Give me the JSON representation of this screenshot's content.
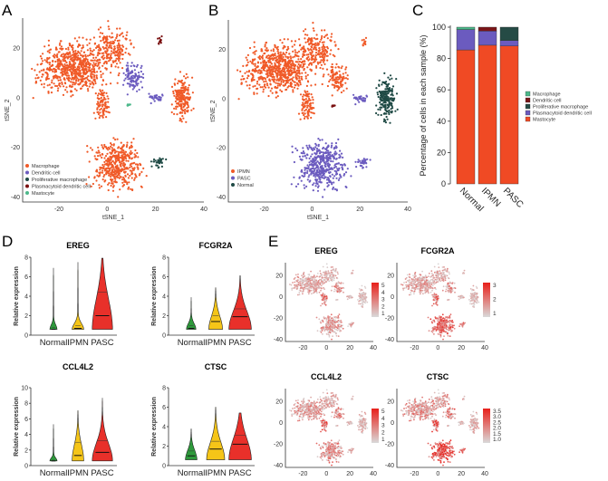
{
  "panel_labels": [
    "A",
    "B",
    "C",
    "D",
    "E"
  ],
  "chart_data": [
    {
      "panel": "A",
      "type": "scatter",
      "xlabel": "tSNE_1",
      "ylabel": "tSNE_2",
      "xticks": [
        -20,
        0,
        20,
        40
      ],
      "yticks": [
        20,
        0,
        -20,
        -40
      ],
      "xlim": [
        -35,
        40
      ],
      "ylim": [
        -42,
        32
      ],
      "legend": [
        {
          "label": "Macrophage",
          "color": "#f05a28"
        },
        {
          "label": "Dendritic cell",
          "color": "#6b5bbf"
        },
        {
          "label": "Proliferative macrophage",
          "color": "#1f4a45"
        },
        {
          "label": "Plasmacytoid dendritic cell",
          "color": "#7a1010"
        },
        {
          "label": "Mastocyte",
          "color": "#4cb88a"
        }
      ],
      "legend_position": "bottom-left"
    },
    {
      "panel": "B",
      "type": "scatter",
      "xlabel": "tSNE_1",
      "ylabel": "tSNE_2",
      "xticks": [
        -20,
        0,
        20,
        40
      ],
      "yticks": [
        20,
        0,
        -20,
        -40
      ],
      "xlim": [
        -35,
        40
      ],
      "ylim": [
        -42,
        32
      ],
      "legend": [
        {
          "label": "IPMN",
          "color": "#f05a28"
        },
        {
          "label": "PASC",
          "color": "#6b5bbf"
        },
        {
          "label": "Normal",
          "color": "#1f4a45"
        }
      ],
      "legend_position": "bottom-left"
    },
    {
      "panel": "C",
      "type": "bar",
      "stacked": true,
      "ylabel": "Percentage of cells in each sample (%)",
      "ylim": [
        0,
        100
      ],
      "yticks": [
        0,
        20,
        40,
        60,
        80,
        100
      ],
      "categories": [
        "Normal",
        "IPMN",
        "PASC"
      ],
      "legend_position": "right",
      "series": [
        {
          "name": "Mastocyte",
          "color": "#f04a24",
          "values": [
            85.5,
            88.5,
            88
          ]
        },
        {
          "name": "Plasmacytoid dendritic cell",
          "color": "#6b5bbf",
          "values": [
            13,
            9,
            3.5
          ]
        },
        {
          "name": "Proliferative macrophage",
          "color": "#254b45",
          "values": [
            0,
            0,
            8.5
          ]
        },
        {
          "name": "Dendritic cell",
          "color": "#7a1518",
          "values": [
            0,
            2.5,
            0
          ]
        },
        {
          "name": "Macrophage",
          "color": "#4cb88a",
          "values": [
            1.5,
            0,
            0
          ]
        }
      ],
      "legend_order": [
        "Macrophage",
        "Dendritic cell",
        "Proliferative macrophage",
        "Plasmacytoid dendritic cell",
        "Mastocyte"
      ]
    },
    {
      "panel": "D",
      "type": "violin",
      "ylabel": "Relative expression",
      "categories": [
        "Normal",
        "IPMN",
        "PASC"
      ],
      "colors": [
        "#2e9a3c",
        "#f5c518",
        "#e8302a"
      ],
      "genes": [
        {
          "title": "EREG",
          "ylim": [
            0,
            8
          ],
          "yticks": [
            0,
            2,
            4,
            6,
            8
          ],
          "median": [
            0.6,
            0.7,
            2.0
          ],
          "q3": [
            0.8,
            1.0,
            4.4
          ],
          "max": [
            6.9,
            7.5,
            7.9
          ],
          "body": [
            0.3,
            0.5,
            0.9
          ]
        },
        {
          "title": "FCGR2A",
          "ylim": [
            0,
            8
          ],
          "yticks": [
            0,
            2,
            4,
            6,
            8
          ],
          "median": [
            0.7,
            1.4,
            1.9
          ],
          "q3": [
            1.0,
            2.0,
            2.7
          ],
          "max": [
            3.9,
            4.9,
            6.1
          ],
          "body": [
            0.4,
            0.6,
            1.0
          ]
        },
        {
          "title": "CCL4L2",
          "ylim": [
            0,
            10
          ],
          "yticks": [
            0,
            2,
            4,
            6,
            8,
            10
          ],
          "median": [
            0.6,
            1.3,
            1.7
          ],
          "q3": [
            0.7,
            3.0,
            3.2
          ],
          "max": [
            5.3,
            7.1,
            8.7
          ],
          "body": [
            0.3,
            0.5,
            0.9
          ]
        },
        {
          "title": "CTSC",
          "ylim": [
            0,
            8
          ],
          "yticks": [
            0,
            2,
            4,
            6,
            8
          ],
          "median": [
            1.0,
            1.7,
            2.2
          ],
          "q3": [
            1.5,
            2.5,
            3.1
          ],
          "max": [
            3.8,
            6.0,
            5.4
          ],
          "body": [
            0.5,
            0.8,
            1.0
          ]
        }
      ]
    },
    {
      "panel": "E",
      "type": "scatter",
      "subtype": "feature-plot",
      "xticks": [
        -20,
        0,
        20,
        40
      ],
      "yticks": [
        20,
        0,
        -20,
        -40
      ],
      "color_low": "#d9d9d9",
      "color_high": "#e8201a",
      "genes": [
        {
          "title": "EREG",
          "colorbar_ticks": [
            "5",
            "4",
            "3",
            "2",
            "1"
          ]
        },
        {
          "title": "FCGR2A",
          "colorbar_ticks": [
            "3",
            "2",
            "1"
          ]
        },
        {
          "title": "CCL4L2",
          "colorbar_ticks": [
            "5",
            "4",
            "3",
            "2",
            "1"
          ]
        },
        {
          "title": "CTSC",
          "colorbar_ticks": [
            "3.5",
            "3.0",
            "2.5",
            "2.0",
            "1.5",
            "1.0"
          ]
        }
      ]
    }
  ]
}
